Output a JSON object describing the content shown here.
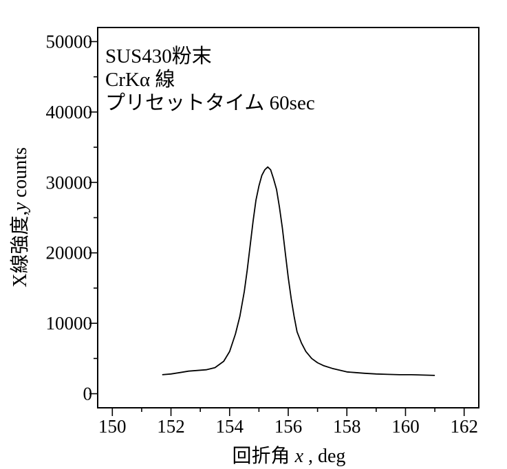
{
  "chart_data": {
    "type": "line",
    "title": "",
    "xlabel_parts": [
      "回折角 ",
      "x",
      "  , deg"
    ],
    "ylabel_parts": [
      "X線強度,",
      "y",
      " counts"
    ],
    "annotations": [
      "SUS430粉末",
      "CrKα 線",
      "プリセットタイム 60sec"
    ],
    "xlim": [
      149.5,
      162.5
    ],
    "ylim": [
      -2000,
      52000
    ],
    "xticks": [
      150,
      152,
      154,
      156,
      158,
      160,
      162
    ],
    "yticks": [
      0,
      10000,
      20000,
      30000,
      40000,
      50000
    ],
    "x_minor_step": 1,
    "y_minor_step": 5000,
    "grid": false,
    "series": [
      {
        "x": [
          151.7,
          152.0,
          152.3,
          152.6,
          152.9,
          153.2,
          153.5,
          153.8,
          154.0,
          154.2,
          154.35,
          154.5,
          154.6,
          154.7,
          154.8,
          154.9,
          155.0,
          155.1,
          155.2,
          155.3,
          155.4,
          155.5,
          155.6,
          155.7,
          155.8,
          155.9,
          156.0,
          156.1,
          156.2,
          156.3,
          156.45,
          156.6,
          156.8,
          157.0,
          157.2,
          157.5,
          157.8,
          158.0,
          158.3,
          158.6,
          159.0,
          159.4,
          159.8,
          160.2,
          160.6,
          161.0
        ],
        "y": [
          2700,
          2800,
          3000,
          3200,
          3300,
          3400,
          3700,
          4600,
          6000,
          8500,
          11000,
          14500,
          17500,
          21000,
          24500,
          27500,
          29500,
          31000,
          31800,
          32200,
          31800,
          30500,
          29000,
          26500,
          23500,
          20000,
          16500,
          13500,
          11000,
          8800,
          7200,
          6000,
          5000,
          4400,
          4000,
          3600,
          3300,
          3100,
          3000,
          2900,
          2800,
          2750,
          2700,
          2700,
          2650,
          2600
        ]
      }
    ]
  }
}
